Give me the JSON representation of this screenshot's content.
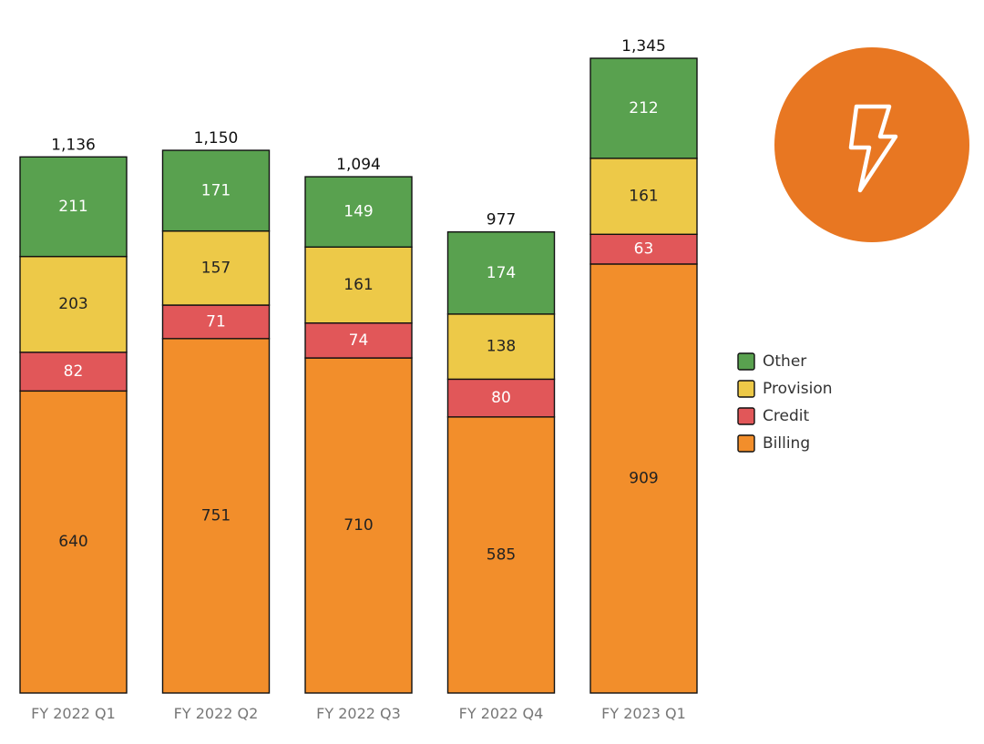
{
  "chart_data": {
    "type": "bar",
    "stacked": true,
    "categories": [
      "FY 2022 Q1",
      "FY 2022 Q2",
      "FY 2022 Q3",
      "FY 2022 Q4",
      "FY 2023 Q1"
    ],
    "series": [
      {
        "name": "Billing",
        "color": "#F28E2B",
        "label_color": "#222222",
        "values": [
          640,
          751,
          710,
          585,
          909
        ]
      },
      {
        "name": "Credit",
        "color": "#E15759",
        "label_color": "#ffffff",
        "values": [
          82,
          71,
          74,
          80,
          63
        ]
      },
      {
        "name": "Provision",
        "color": "#EDC948",
        "label_color": "#222222",
        "values": [
          203,
          157,
          161,
          138,
          161
        ]
      },
      {
        "name": "Other",
        "color": "#59A14F",
        "label_color": "#ffffff",
        "values": [
          211,
          171,
          149,
          174,
          212
        ]
      }
    ],
    "totals": [
      "1,136",
      "1,150",
      "1,094",
      "977",
      "1,345"
    ],
    "legend": {
      "placement": "right",
      "entries": [
        "Other",
        "Provision",
        "Credit",
        "Billing"
      ]
    },
    "ylim": [
      0,
      1345
    ],
    "grid": false
  },
  "badge": {
    "icon": "lightning-bolt-icon",
    "color": "#E87722"
  }
}
